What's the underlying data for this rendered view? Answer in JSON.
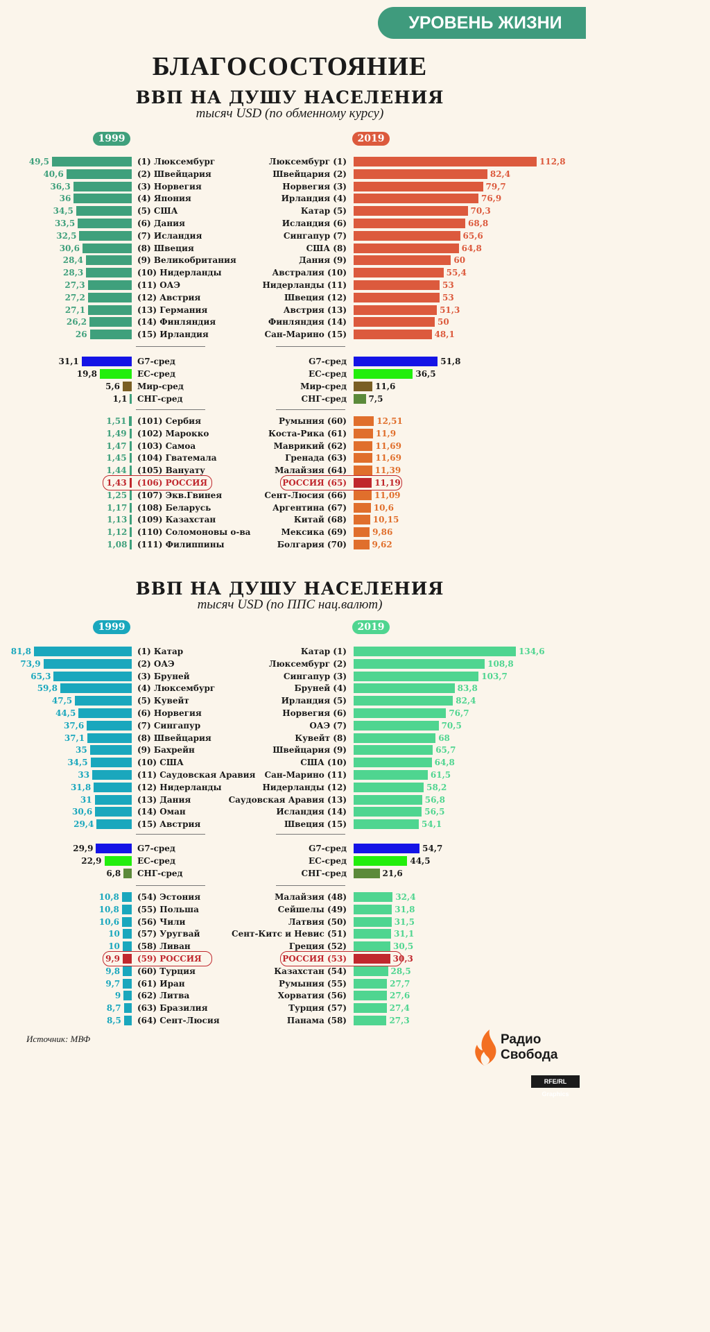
{
  "header": {
    "banner": "УРОВЕНЬ ЖИЗНИ",
    "title": "БЛАГОСОСТОЯНИЕ"
  },
  "colors": {
    "banner": "#3f9b7d",
    "s1_left": "#3fa07c",
    "s1_right_top": "#dc5a3d",
    "s1_right_bottom": "#e06f2c",
    "s2_left": "#1aa7bd",
    "s2_right": "#4fd590",
    "g7": "#1414e6",
    "eu": "#22ee0c",
    "world": "#7a5f24",
    "cis_1999_nominal": "#3fa07c",
    "cis_2019_nominal": "#5b8a3a",
    "cis_ppp": "#5b8a3a",
    "russia": "#c0272d"
  },
  "chart_data": [
    {
      "type": "bar",
      "title": "ВВП НА ДУШУ НАСЕЛЕНИЯ",
      "subtitle": "тысяч USD (по обменному курсу)",
      "left": {
        "year": "1999",
        "top15": [
          {
            "label": "(1) Люксембург",
            "value": 49.5,
            "display": "49,5"
          },
          {
            "label": "(2) Швейцария",
            "value": 40.6,
            "display": "40,6"
          },
          {
            "label": "(3) Норвегия",
            "value": 36.3,
            "display": "36,3"
          },
          {
            "label": "(4) Япония",
            "value": 36,
            "display": "36"
          },
          {
            "label": "(5) США",
            "value": 34.5,
            "display": "34,5"
          },
          {
            "label": "(6) Дания",
            "value": 33.5,
            "display": "33,5"
          },
          {
            "label": "(7) Исландия",
            "value": 32.5,
            "display": "32,5"
          },
          {
            "label": "(8) Швеция",
            "value": 30.6,
            "display": "30,6"
          },
          {
            "label": "(9) Великобритания",
            "value": 28.4,
            "display": "28,4"
          },
          {
            "label": "(10) Нидерланды",
            "value": 28.3,
            "display": "28,3"
          },
          {
            "label": "(11) ОАЭ",
            "value": 27.3,
            "display": "27,3"
          },
          {
            "label": "(12) Австрия",
            "value": 27.2,
            "display": "27,2"
          },
          {
            "label": "(13) Германия",
            "value": 27.1,
            "display": "27,1"
          },
          {
            "label": "(14) Финляндия",
            "value": 26.2,
            "display": "26,2"
          },
          {
            "label": "(15) Ирландия",
            "value": 26,
            "display": "26"
          }
        ],
        "averages": [
          {
            "label": "G7-сред",
            "value": 31.1,
            "display": "31,1",
            "color": "g7"
          },
          {
            "label": "ЕС-сред",
            "value": 19.8,
            "display": "19,8",
            "color": "eu"
          },
          {
            "label": "Мир-сред",
            "value": 5.6,
            "display": "5,6",
            "color": "world"
          },
          {
            "label": "СНГ-сред",
            "value": 1.1,
            "display": "1,1",
            "color": "cis_1999_nominal"
          }
        ],
        "around_russia": [
          {
            "label": "(101) Сербия",
            "value": 1.51,
            "display": "1,51"
          },
          {
            "label": "(102) Марокко",
            "value": 1.49,
            "display": "1,49"
          },
          {
            "label": "(103) Самоа",
            "value": 1.47,
            "display": "1,47"
          },
          {
            "label": "(104) Гватемала",
            "value": 1.45,
            "display": "1,45"
          },
          {
            "label": "(105) Вануату",
            "value": 1.44,
            "display": "1,44"
          },
          {
            "label": "(106) РОССИЯ",
            "value": 1.43,
            "display": "1,43",
            "russia": true
          },
          {
            "label": "(107) Экв.Гвинея",
            "value": 1.25,
            "display": "1,25"
          },
          {
            "label": "(108) Беларусь",
            "value": 1.17,
            "display": "1,17"
          },
          {
            "label": "(109) Казахстан",
            "value": 1.13,
            "display": "1,13"
          },
          {
            "label": "(110) Соломоновы о-ва",
            "value": 1.12,
            "display": "1,12"
          },
          {
            "label": "(111) Филиппины",
            "value": 1.08,
            "display": "1,08"
          }
        ]
      },
      "right": {
        "year": "2019",
        "top15": [
          {
            "label": "Люксембург (1)",
            "value": 112.8,
            "display": "112,8"
          },
          {
            "label": "Швейцария (2)",
            "value": 82.4,
            "display": "82,4"
          },
          {
            "label": "Норвегия (3)",
            "value": 79.7,
            "display": "79,7"
          },
          {
            "label": "Ирландия (4)",
            "value": 76.9,
            "display": "76,9"
          },
          {
            "label": "Катар (5)",
            "value": 70.3,
            "display": "70,3"
          },
          {
            "label": "Исландия (6)",
            "value": 68.8,
            "display": "68,8"
          },
          {
            "label": "Сингапур (7)",
            "value": 65.6,
            "display": "65,6"
          },
          {
            "label": "США (8)",
            "value": 64.8,
            "display": "64,8"
          },
          {
            "label": "Дания (9)",
            "value": 60,
            "display": "60"
          },
          {
            "label": "Австралия (10)",
            "value": 55.4,
            "display": "55,4"
          },
          {
            "label": "Нидерланды (11)",
            "value": 53,
            "display": "53"
          },
          {
            "label": "Швеция (12)",
            "value": 53,
            "display": "53"
          },
          {
            "label": "Австрия (13)",
            "value": 51.3,
            "display": "51,3"
          },
          {
            "label": "Финляндия (14)",
            "value": 50,
            "display": "50"
          },
          {
            "label": "Сан-Марино (15)",
            "value": 48.1,
            "display": "48,1"
          }
        ],
        "averages": [
          {
            "label": "G7-сред",
            "value": 51.8,
            "display": "51,8",
            "color": "g7"
          },
          {
            "label": "ЕС-сред",
            "value": 36.5,
            "display": "36,5",
            "color": "eu"
          },
          {
            "label": "Мир-сред",
            "value": 11.6,
            "display": "11,6",
            "color": "world"
          },
          {
            "label": "СНГ-сред",
            "value": 7.5,
            "display": "7,5",
            "color": "cis_2019_nominal"
          }
        ],
        "around_russia": [
          {
            "label": "Румыния (60)",
            "value": 12.51,
            "display": "12,51"
          },
          {
            "label": "Коста-Рика (61)",
            "value": 11.9,
            "display": "11,9"
          },
          {
            "label": "Маврикий (62)",
            "value": 11.69,
            "display": "11,69"
          },
          {
            "label": "Гренада (63)",
            "value": 11.69,
            "display": "11,69"
          },
          {
            "label": "Малайзия (64)",
            "value": 11.39,
            "display": "11,39"
          },
          {
            "label": "РОССИЯ (65)",
            "value": 11.19,
            "display": "11,19",
            "russia": true
          },
          {
            "label": "Сент-Люсия (66)",
            "value": 11.09,
            "display": "11,09"
          },
          {
            "label": "Аргентина (67)",
            "value": 10.6,
            "display": "10,6"
          },
          {
            "label": "Китай (68)",
            "value": 10.15,
            "display": "10,15"
          },
          {
            "label": "Мексика (69)",
            "value": 9.86,
            "display": "9,86"
          },
          {
            "label": "Болгария (70)",
            "value": 9.62,
            "display": "9,62"
          }
        ]
      }
    },
    {
      "type": "bar",
      "title": "ВВП НА ДУШУ НАСЕЛЕНИЯ",
      "subtitle": "тысяч USD (по ППС нац.валют)",
      "left": {
        "year": "1999",
        "top15": [
          {
            "label": "(1) Катар",
            "value": 81.8,
            "display": "81,8"
          },
          {
            "label": "(2) ОАЭ",
            "value": 73.9,
            "display": "73,9"
          },
          {
            "label": "(3) Бруней",
            "value": 65.3,
            "display": "65,3"
          },
          {
            "label": "(4) Люксембург",
            "value": 59.8,
            "display": "59,8"
          },
          {
            "label": "(5) Кувейт",
            "value": 47.5,
            "display": "47,5"
          },
          {
            "label": "(6) Норвегия",
            "value": 44.5,
            "display": "44,5"
          },
          {
            "label": "(7) Сингапур",
            "value": 37.6,
            "display": "37,6"
          },
          {
            "label": "(8) Швейцария",
            "value": 37.1,
            "display": "37,1"
          },
          {
            "label": "(9) Бахрейн",
            "value": 35,
            "display": "35"
          },
          {
            "label": "(10) США",
            "value": 34.5,
            "display": "34,5"
          },
          {
            "label": "(11) Саудовская Аравия",
            "value": 33,
            "display": "33"
          },
          {
            "label": "(12) Нидерланды",
            "value": 31.8,
            "display": "31,8"
          },
          {
            "label": "(13) Дания",
            "value": 31,
            "display": "31"
          },
          {
            "label": "(14) Оман",
            "value": 30.6,
            "display": "30,6"
          },
          {
            "label": "(15) Австрия",
            "value": 29.4,
            "display": "29,4"
          }
        ],
        "averages": [
          {
            "label": "G7-сред",
            "value": 29.9,
            "display": "29,9",
            "color": "g7"
          },
          {
            "label": "ЕС-сред",
            "value": 22.9,
            "display": "22,9",
            "color": "eu"
          },
          {
            "label": "СНГ-сред",
            "value": 6.8,
            "display": "6,8",
            "color": "cis_ppp"
          }
        ],
        "around_russia": [
          {
            "label": "(54) Эстония",
            "value": 10.8,
            "display": "10,8"
          },
          {
            "label": "(55) Польша",
            "value": 10.8,
            "display": "10,8"
          },
          {
            "label": "(56) Чили",
            "value": 10.6,
            "display": "10,6"
          },
          {
            "label": "(57) Уругвай",
            "value": 10,
            "display": "10"
          },
          {
            "label": "(58) Ливан",
            "value": 10,
            "display": "10"
          },
          {
            "label": "(59) РОССИЯ",
            "value": 9.9,
            "display": "9,9",
            "russia": true
          },
          {
            "label": "(60) Турция",
            "value": 9.8,
            "display": "9,8"
          },
          {
            "label": "(61) Иран",
            "value": 9.7,
            "display": "9,7"
          },
          {
            "label": "(62) Литва",
            "value": 9,
            "display": "9"
          },
          {
            "label": "(63) Бразилия",
            "value": 8.7,
            "display": "8,7"
          },
          {
            "label": "(64) Сент-Люсия",
            "value": 8.5,
            "display": "8,5"
          }
        ]
      },
      "right": {
        "year": "2019",
        "top15": [
          {
            "label": "Катар (1)",
            "value": 134.6,
            "display": "134,6"
          },
          {
            "label": "Люксембург (2)",
            "value": 108.8,
            "display": "108,8"
          },
          {
            "label": "Сингапур (3)",
            "value": 103.7,
            "display": "103,7"
          },
          {
            "label": "Бруней (4)",
            "value": 83.8,
            "display": "83,8"
          },
          {
            "label": "Ирландия (5)",
            "value": 82.4,
            "display": "82,4"
          },
          {
            "label": "Норвегия (6)",
            "value": 76.7,
            "display": "76,7"
          },
          {
            "label": "ОАЭ (7)",
            "value": 70.5,
            "display": "70,5"
          },
          {
            "label": "Кувейт (8)",
            "value": 68,
            "display": "68"
          },
          {
            "label": "Швейцария (9)",
            "value": 65.7,
            "display": "65,7"
          },
          {
            "label": "США (10)",
            "value": 64.8,
            "display": "64,8"
          },
          {
            "label": "Сан-Марино (11)",
            "value": 61.5,
            "display": "61,5"
          },
          {
            "label": "Нидерланды (12)",
            "value": 58.2,
            "display": "58,2"
          },
          {
            "label": "Саудовская Аравия (13)",
            "value": 56.8,
            "display": "56,8"
          },
          {
            "label": "Исландия (14)",
            "value": 56.5,
            "display": "56,5"
          },
          {
            "label": "Швеция (15)",
            "value": 54.1,
            "display": "54,1"
          }
        ],
        "averages": [
          {
            "label": "G7-сред",
            "value": 54.7,
            "display": "54,7",
            "color": "g7"
          },
          {
            "label": "ЕС-сред",
            "value": 44.5,
            "display": "44,5",
            "color": "eu"
          },
          {
            "label": "СНГ-сред",
            "value": 21.6,
            "display": "21,6",
            "color": "cis_ppp"
          }
        ],
        "around_russia": [
          {
            "label": "Малайзия (48)",
            "value": 32.4,
            "display": "32,4"
          },
          {
            "label": "Сейшелы (49)",
            "value": 31.8,
            "display": "31,8"
          },
          {
            "label": "Латвия (50)",
            "value": 31.5,
            "display": "31,5"
          },
          {
            "label": "Сент-Китс и Невис (51)",
            "value": 31.1,
            "display": "31,1"
          },
          {
            "label": "Греция (52)",
            "value": 30.5,
            "display": "30,5"
          },
          {
            "label": "РОССИЯ (53)",
            "value": 30.3,
            "display": "30,3",
            "russia": true
          },
          {
            "label": "Казахстан (54)",
            "value": 28.5,
            "display": "28,5"
          },
          {
            "label": "Румыния (55)",
            "value": 27.7,
            "display": "27,7"
          },
          {
            "label": "Хорватия (56)",
            "value": 27.6,
            "display": "27,6"
          },
          {
            "label": "Турция (57)",
            "value": 27.4,
            "display": "27,4"
          },
          {
            "label": "Панама (58)",
            "value": 27.3,
            "display": "27,3"
          }
        ]
      }
    }
  ],
  "footer": {
    "source": "Источник: МВФ",
    "logo_line1": "Радио",
    "logo_line2": "Свобода",
    "credit": "RFE/RL Graphics"
  }
}
